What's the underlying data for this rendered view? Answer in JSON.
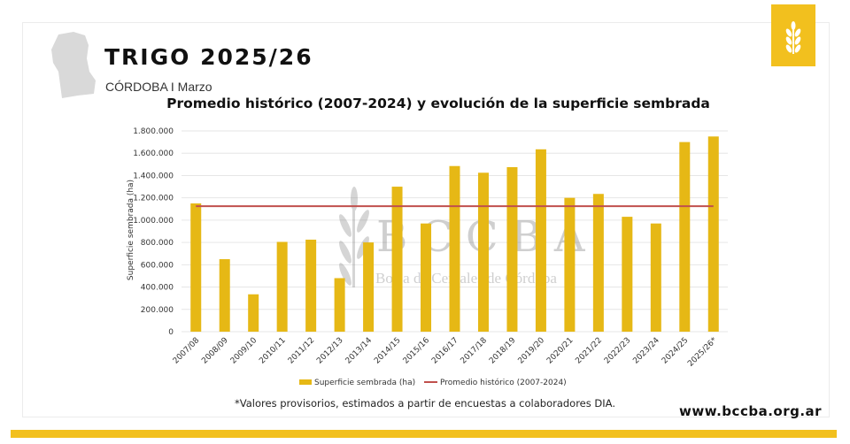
{
  "header": {
    "title": "TRIGO 2025/26",
    "subtitle": "CÓRDOBA I Marzo"
  },
  "brand": {
    "accent": "#f2c01e",
    "watermark_main": "BCCBA",
    "watermark_sub": "Bolsa de Cereales de Córdoba",
    "logo_icon": "wheat-icon"
  },
  "chart_data": {
    "type": "bar",
    "title": "Promedio histórico (2007-2024) y evolución de la superficie sembrada",
    "ylabel": "Superficie sembrada (ha)",
    "xlabel": "",
    "ylim": [
      0,
      1800000
    ],
    "yticks": [
      "0",
      "200.000",
      "400.000",
      "600.000",
      "800.000",
      "1.000.000",
      "1.200.000",
      "1.400.000",
      "1.600.000",
      "1.800.000"
    ],
    "grid": true,
    "legend_position": "bottom",
    "categories": [
      "2007/08",
      "2008/09",
      "2009/10",
      "2010/11",
      "2011/12",
      "2012/13",
      "2013/14",
      "2014/15",
      "2015/16",
      "2016/17",
      "2017/18",
      "2018/19",
      "2019/20",
      "2020/21",
      "2021/22",
      "2022/23",
      "2023/24",
      "2024/25",
      "2025/26*"
    ],
    "series": [
      {
        "name": "Superficie sembrada (ha)",
        "type": "bar",
        "color": "#e6b815",
        "values": [
          1150000,
          650000,
          335000,
          805000,
          825000,
          480000,
          800000,
          1300000,
          970000,
          1485000,
          1425000,
          1475000,
          1635000,
          1200000,
          1235000,
          1030000,
          970000,
          1700000,
          1750000
        ]
      },
      {
        "name": "Promedio histórico (2007-2024)",
        "type": "line",
        "color": "#c0504d",
        "value": 1125000
      }
    ]
  },
  "footer": {
    "note": "*Valores provisorios, estimados a partir de encuestas a colaboradores DIA.",
    "url": "www.bccba.org.ar"
  }
}
